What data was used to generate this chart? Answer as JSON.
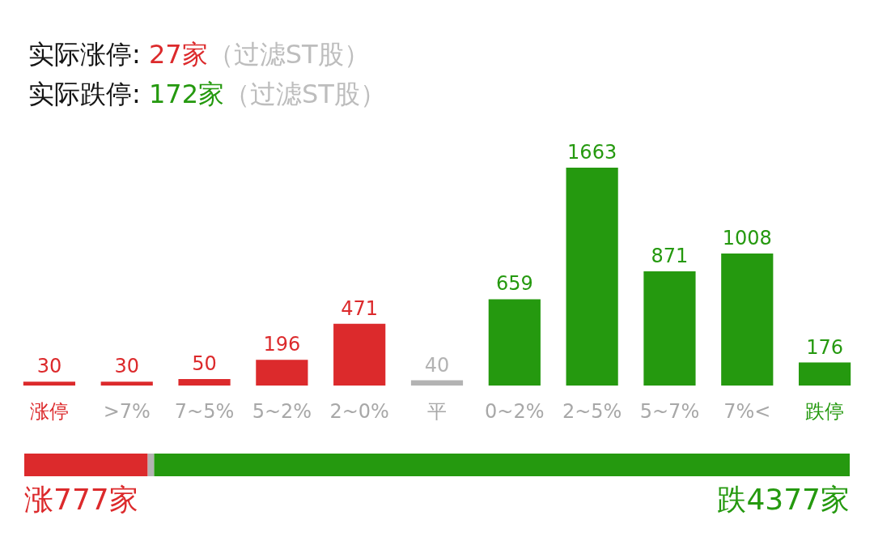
{
  "chart_data": [
    {
      "type": "bar",
      "title": "实际涨停: 27家（过滤ST股）",
      "subtitle": "实际跌停: 172家（过滤ST股）",
      "categories": [
        "涨停",
        ">7%",
        "7~5%",
        "5~2%",
        "2~0%",
        "平",
        "0~2%",
        "2~5%",
        "5~7%",
        "7%<",
        "跌停"
      ],
      "values": [
        30,
        30,
        50,
        196,
        471,
        40,
        659,
        1663,
        871,
        1008,
        176
      ],
      "colors": [
        "#dc2a2c",
        "#dc2a2c",
        "#dc2a2c",
        "#dc2a2c",
        "#dc2a2c",
        "#b3b3b3",
        "#25990f",
        "#25990f",
        "#25990f",
        "#25990f",
        "#25990f"
      ],
      "data_labels": true,
      "tick_labels": "x"
    },
    {
      "type": "bar",
      "orientation": "horizontal",
      "stacked": true,
      "categories": [
        null
      ],
      "series": [
        {
          "color": "#dc2a2c",
          "values": [
            777
          ],
          "value_labels": [
            "涨777家"
          ]
        },
        {
          "color": "#b3b3b3",
          "values": [
            40
          ],
          "value_labels": [
            null
          ]
        },
        {
          "color": "#25990f",
          "values": [
            4377
          ],
          "value_labels": [
            "跌4377家"
          ]
        }
      ],
      "tick_labels": false
    }
  ]
}
